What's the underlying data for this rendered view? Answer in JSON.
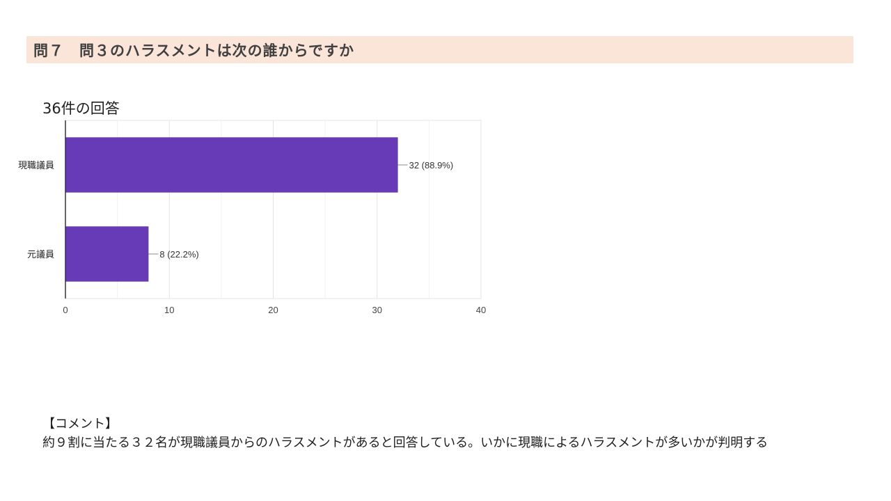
{
  "header": {
    "title": "問７　問３のハラスメントは次の誰からですか"
  },
  "summary": {
    "response_count": "36件の回答"
  },
  "chart_data": {
    "type": "bar",
    "orientation": "horizontal",
    "categories": [
      "現職議員",
      "元議員"
    ],
    "values": [
      32,
      8
    ],
    "data_labels": [
      "32 (88.9%)",
      "8 (22.2%)"
    ],
    "xlim": [
      0,
      40
    ],
    "x_ticks": [
      0,
      10,
      20,
      30,
      40
    ],
    "grid": true,
    "bar_color": "#673ab7"
  },
  "comment": {
    "heading": "【コメント】",
    "body": "約９割に当たる３２名が現職議員からのハラスメントがあると回答している。いかに現職によるハラスメントが多いかが判明する"
  }
}
